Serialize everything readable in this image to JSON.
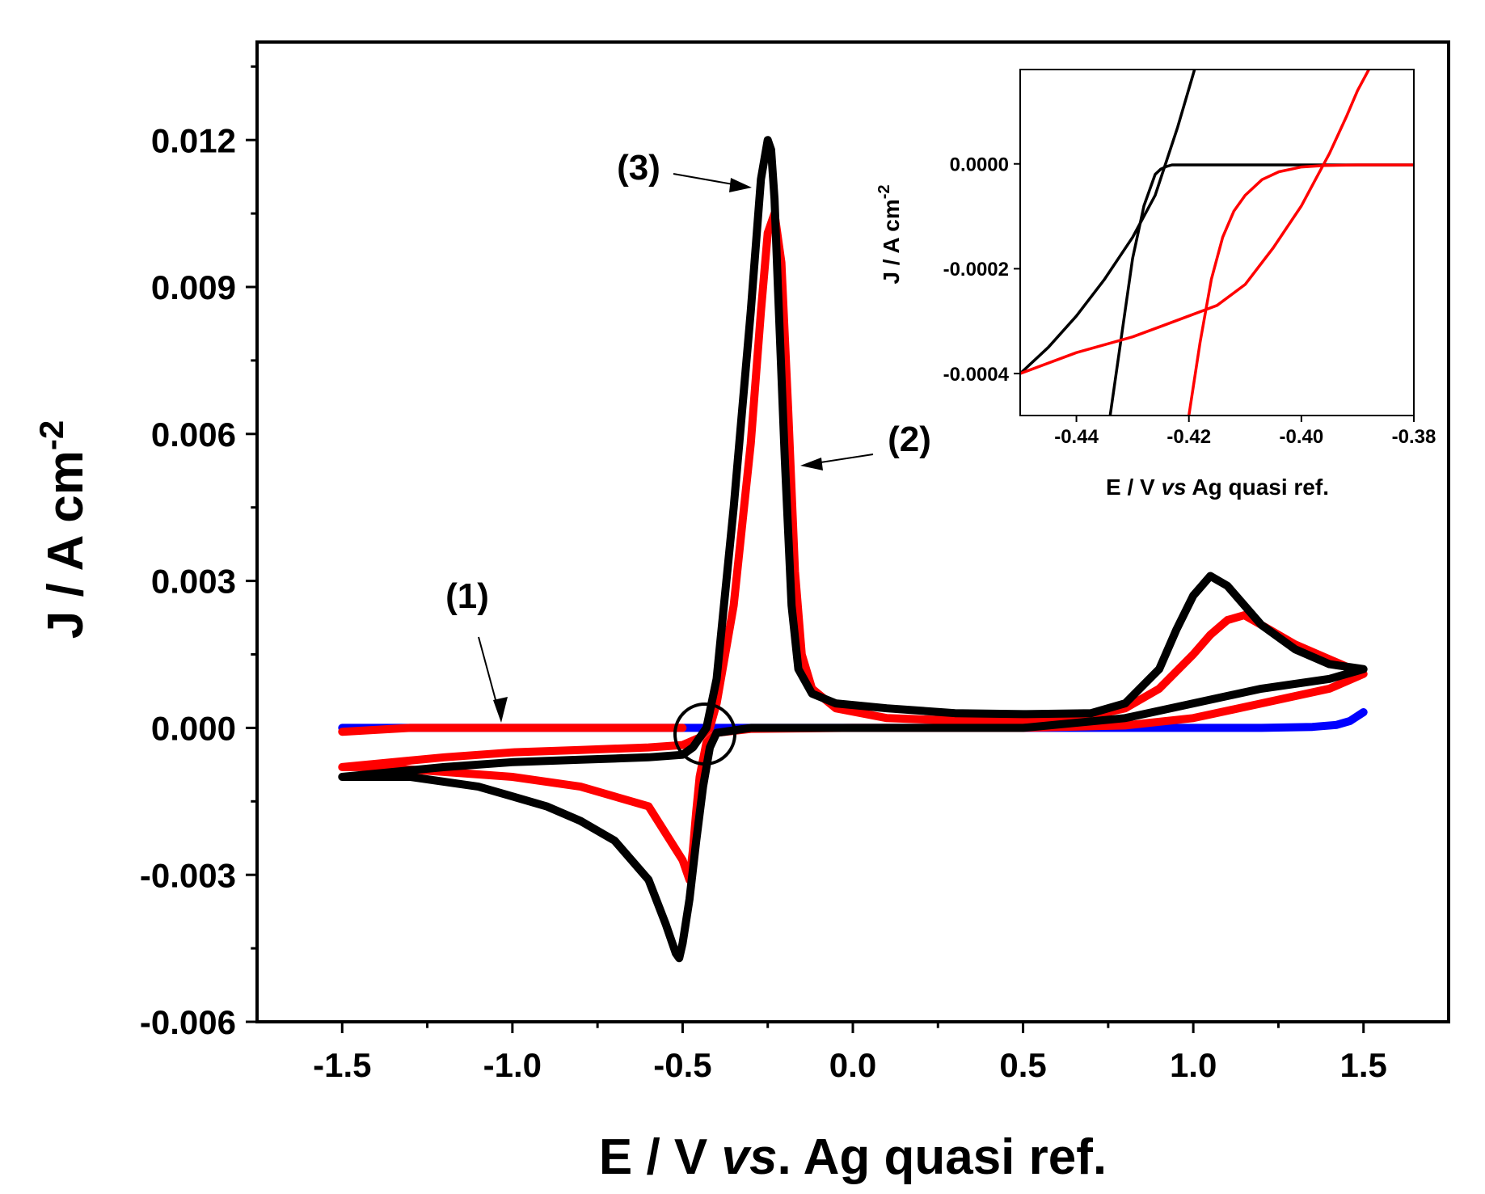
{
  "chart_data": [
    {
      "type": "line",
      "title": "",
      "xlabel_parts": [
        "E / V ",
        "vs",
        ". Ag quasi ref."
      ],
      "ylabel_main": "J / A cm",
      "ylabel_sup": "-2",
      "xlim": [
        -1.75,
        1.75
      ],
      "ylim": [
        -0.006,
        0.014
      ],
      "xticks": [
        -1.5,
        -1.0,
        -0.5,
        0.0,
        0.5,
        1.0,
        1.5
      ],
      "xtick_labels": [
        "-1.5",
        "-1.0",
        "-0.5",
        "0.0",
        "0.5",
        "1.0",
        "1.5"
      ],
      "yticks": [
        -0.006,
        -0.003,
        0.0,
        0.003,
        0.006,
        0.009,
        0.012
      ],
      "ytick_labels": [
        "-0.006",
        "-0.003",
        "0.000",
        "0.003",
        "0.006",
        "0.009",
        "0.012"
      ],
      "grid": false,
      "annotations": [
        {
          "text": "(1)",
          "x": -1.0,
          "y": 0.0022,
          "arrow_to": [
            -0.95,
            0.0
          ]
        },
        {
          "text": "(2)",
          "x": 0.15,
          "y": 0.0057,
          "arrow_to": [
            -0.17,
            0.0054
          ]
        },
        {
          "text": "(3)",
          "x": -0.63,
          "y": 0.0115,
          "arrow_to": [
            -0.28,
            0.0111
          ]
        }
      ],
      "series": [
        {
          "color": "#0000ff",
          "x": [
            -1.5,
            -1.0,
            -0.5,
            0.0,
            0.5,
            1.0,
            1.2,
            1.35,
            1.42,
            1.46,
            1.5
          ],
          "y": [
            0.0,
            0.0,
            0.0,
            0.0,
            0.0,
            0.0,
            0.0,
            2e-05,
            6e-05,
            0.00014,
            0.00032
          ]
        },
        {
          "color": "#ff0000",
          "x": [
            -1.5,
            -1.2,
            -1.0,
            -0.8,
            -0.6,
            -0.5,
            -0.45,
            -0.42,
            -0.4,
            -0.35,
            -0.3,
            -0.27,
            -0.25,
            -0.23,
            -0.21,
            -0.19,
            -0.17,
            -0.15,
            -0.12,
            -0.05,
            0.1,
            0.3,
            0.5,
            0.7,
            0.8,
            0.9,
            1.0,
            1.05,
            1.1,
            1.15,
            1.2,
            1.3,
            1.4,
            1.5,
            1.4,
            1.2,
            1.0,
            0.8,
            0.5,
            0.0,
            -0.3,
            -0.4,
            -0.43,
            -0.45,
            -0.46,
            -0.47,
            -0.48,
            -0.5,
            -0.6,
            -0.8,
            -1.0,
            -1.2,
            -1.4,
            -1.5
          ],
          "y": [
            -0.0008,
            -0.0006,
            -0.0005,
            -0.00045,
            -0.0004,
            -0.00035,
            -0.0002,
            0.0,
            0.0005,
            0.0025,
            0.0058,
            0.0085,
            0.0101,
            0.0105,
            0.0095,
            0.0065,
            0.0032,
            0.0015,
            0.0008,
            0.0004,
            0.0002,
            0.00015,
            0.00015,
            0.00025,
            0.0004,
            0.0008,
            0.0015,
            0.0019,
            0.0022,
            0.0023,
            0.0021,
            0.0017,
            0.0014,
            0.0011,
            0.0008,
            0.0005,
            0.0002,
            5e-05,
            0.0,
            0.0,
            -2e-05,
            -0.0001,
            -0.0003,
            -0.001,
            -0.0017,
            -0.0025,
            -0.0031,
            -0.0027,
            -0.0016,
            -0.0012,
            -0.001,
            -0.0009,
            -0.0008,
            -0.0008
          ]
        },
        {
          "color": "#ff0000",
          "x": [
            -1.5,
            -1.3,
            -1.0,
            -0.7,
            -0.5
          ],
          "y": [
            -8e-05,
            0.0,
            0.0,
            0.0,
            0.0
          ]
        },
        {
          "color": "#000000",
          "x": [
            -1.5,
            -1.2,
            -1.0,
            -0.8,
            -0.6,
            -0.5,
            -0.47,
            -0.45,
            -0.43,
            -0.4,
            -0.35,
            -0.3,
            -0.27,
            -0.25,
            -0.24,
            -0.23,
            -0.22,
            -0.2,
            -0.18,
            -0.16,
            -0.12,
            -0.05,
            0.1,
            0.3,
            0.5,
            0.7,
            0.8,
            0.9,
            0.95,
            1.0,
            1.05,
            1.1,
            1.2,
            1.3,
            1.4,
            1.5,
            1.4,
            1.2,
            1.0,
            0.8,
            0.5,
            0.0,
            -0.3,
            -0.4,
            -0.42,
            -0.44,
            -0.46,
            -0.48,
            -0.5,
            -0.51,
            -0.52,
            -0.55,
            -0.6,
            -0.7,
            -0.8,
            -0.9,
            -1.0,
            -1.1,
            -1.2,
            -1.3,
            -1.4,
            -1.5
          ],
          "y": [
            -0.001,
            -0.0008,
            -0.0007,
            -0.00065,
            -0.0006,
            -0.00055,
            -0.0004,
            -0.0002,
            0.0,
            0.001,
            0.0045,
            0.0085,
            0.0112,
            0.012,
            0.0118,
            0.0108,
            0.009,
            0.0055,
            0.0025,
            0.0012,
            0.0007,
            0.0005,
            0.0004,
            0.0003,
            0.00028,
            0.0003,
            0.0005,
            0.0012,
            0.002,
            0.0027,
            0.0031,
            0.0029,
            0.0021,
            0.0016,
            0.0013,
            0.0012,
            0.001,
            0.0008,
            0.0005,
            0.0002,
            0.0,
            0.0,
            0.0,
            -0.0001,
            -0.0004,
            -0.0012,
            -0.0023,
            -0.0035,
            -0.0044,
            -0.0047,
            -0.0046,
            -0.004,
            -0.0031,
            -0.0023,
            -0.0019,
            -0.0016,
            -0.0014,
            -0.0012,
            -0.0011,
            -0.001,
            -0.001,
            -0.001
          ]
        }
      ]
    },
    {
      "type": "line",
      "title": "",
      "xlabel_parts": [
        "E / V ",
        "vs",
        " Ag quasi ref."
      ],
      "ylabel_main": "J / A cm",
      "ylabel_sup": "-2",
      "xlim": [
        -0.45,
        -0.38
      ],
      "ylim": [
        -0.00048,
        0.00018
      ],
      "xticks": [
        -0.44,
        -0.42,
        -0.4,
        -0.38
      ],
      "xtick_labels": [
        "-0.44",
        "-0.42",
        "-0.40",
        "-0.38"
      ],
      "yticks": [
        -0.0004,
        -0.0002,
        0.0
      ],
      "ytick_labels": [
        "-0.0004",
        "-0.0002",
        "0.0000"
      ],
      "grid": false,
      "series": [
        {
          "color": "#000000",
          "x": [
            -0.434,
            -0.432,
            -0.43,
            -0.428,
            -0.426,
            -0.425,
            -0.424,
            -0.423,
            -0.42,
            -0.41,
            -0.4,
            -0.39,
            -0.38
          ],
          "y": [
            -0.00048,
            -0.00033,
            -0.00018,
            -8e-05,
            -2e-05,
            -1e-05,
            -5e-06,
            -2e-06,
            -2e-06,
            -2e-06,
            -2e-06,
            -2e-06,
            -2e-06
          ]
        },
        {
          "color": "#000000",
          "x": [
            -0.45,
            -0.445,
            -0.44,
            -0.435,
            -0.43,
            -0.426,
            -0.422,
            -0.419
          ],
          "y": [
            -0.0004,
            -0.00035,
            -0.00029,
            -0.00022,
            -0.00014,
            -6e-05,
            7e-05,
            0.00018
          ]
        },
        {
          "color": "#ff0000",
          "x": [
            -0.42,
            -0.418,
            -0.416,
            -0.414,
            -0.412,
            -0.41,
            -0.407,
            -0.404,
            -0.4,
            -0.396,
            -0.39,
            -0.38
          ],
          "y": [
            -0.00048,
            -0.00034,
            -0.00022,
            -0.00014,
            -9e-05,
            -6e-05,
            -3e-05,
            -1.5e-05,
            -6e-06,
            -3e-06,
            -2e-06,
            -2e-06
          ]
        },
        {
          "color": "#ff0000",
          "x": [
            -0.45,
            -0.44,
            -0.43,
            -0.425,
            -0.42,
            -0.415,
            -0.41,
            -0.405,
            -0.4,
            -0.397,
            -0.395,
            -0.392,
            -0.39,
            -0.388
          ],
          "y": [
            -0.0004,
            -0.00036,
            -0.00033,
            -0.00031,
            -0.00029,
            -0.00027,
            -0.00023,
            -0.00016,
            -8e-05,
            -2e-05,
            2e-05,
            9e-05,
            0.00014,
            0.00018
          ]
        }
      ]
    }
  ]
}
